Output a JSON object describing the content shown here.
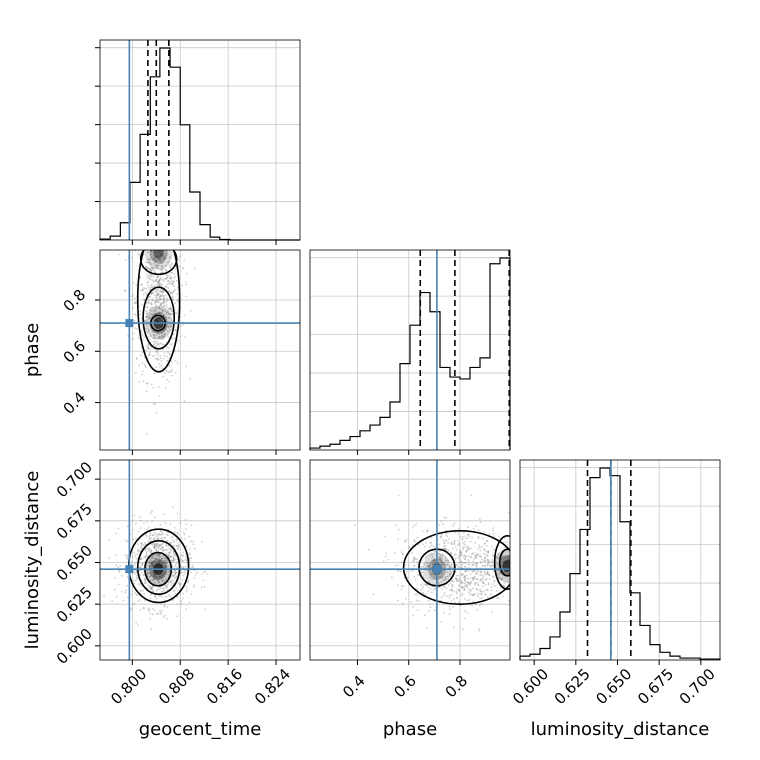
{
  "chart_data": {
    "type": "corner",
    "parameters": [
      "geocent_time",
      "phase",
      "luminosity_distance"
    ],
    "truth_color": "#4682b4",
    "truths": {
      "geocent_time": 0.7995,
      "phase": 0.71,
      "luminosity_distance": 0.646
    },
    "ranges": {
      "geocent_time": [
        0.7946,
        0.828
      ],
      "phase": [
        0.215,
        0.995
      ],
      "luminosity_distance": [
        0.5915,
        0.7115
      ]
    },
    "ticks": {
      "geocent_time": {
        "values": [
          0.8,
          0.808,
          0.816,
          0.824
        ],
        "labels": [
          "0.800",
          "0.808",
          "0.816",
          "0.824"
        ]
      },
      "phase": {
        "values": [
          0.4,
          0.6,
          0.8
        ],
        "labels": [
          "0.4",
          "0.6",
          "0.8"
        ]
      },
      "luminosity_distance": {
        "values": [
          0.6,
          0.625,
          0.65,
          0.675,
          0.7
        ],
        "labels": [
          "0.600",
          "0.625",
          "0.650",
          "0.675",
          "0.700"
        ]
      }
    },
    "histograms": {
      "geocent_time": {
        "bin_edges": [
          0.7946,
          0.7963,
          0.798,
          0.7996,
          0.8013,
          0.803,
          0.8046,
          0.8063,
          0.808,
          0.8096,
          0.8113,
          0.813,
          0.8146,
          0.8163,
          0.818,
          0.8196,
          0.8213,
          0.823,
          0.8246,
          0.8263,
          0.828
        ],
        "counts": [
          0.5,
          2,
          9,
          30,
          55,
          85,
          100,
          90,
          60,
          25,
          8,
          1.5,
          0.3,
          0,
          0,
          0,
          0,
          0,
          0,
          0
        ],
        "quantiles": [
          0.8026,
          0.804,
          0.8061
        ]
      },
      "phase": {
        "bin_edges": [
          0.215,
          0.254,
          0.293,
          0.332,
          0.371,
          0.41,
          0.449,
          0.488,
          0.527,
          0.566,
          0.605,
          0.644,
          0.683,
          0.722,
          0.761,
          0.8,
          0.839,
          0.878,
          0.917,
          0.956,
          0.995
        ],
        "counts": [
          1,
          2,
          3,
          5,
          7,
          10,
          13,
          17,
          25,
          45,
          65,
          82,
          72,
          43,
          38,
          37,
          43,
          48,
          97,
          100
        ],
        "quantiles": [
          0.645,
          0.78,
          0.992
        ]
      },
      "luminosity_distance": {
        "bin_edges": [
          0.5915,
          0.5975,
          0.6035,
          0.6095,
          0.6155,
          0.6215,
          0.6275,
          0.6335,
          0.6395,
          0.6455,
          0.6515,
          0.6575,
          0.6635,
          0.6695,
          0.6755,
          0.6815,
          0.6875,
          0.6935,
          0.6995,
          0.7055,
          0.7115
        ],
        "counts": [
          2,
          3,
          6,
          12,
          25,
          45,
          68,
          95,
          100,
          96,
          72,
          35,
          18,
          8,
          4,
          2,
          1,
          1,
          0.5,
          0.5
        ],
        "quantiles": [
          0.632,
          0.646,
          0.658
        ]
      }
    },
    "joint": [
      {
        "x": "geocent_time",
        "y": "phase",
        "peaks": [
          [
            0.8044,
            0.985,
            0.7
          ],
          [
            0.8044,
            0.71,
            0.9
          ]
        ],
        "contours": [
          [
            0.8044,
            0.8,
            0.0035,
            0.28
          ],
          [
            0.8044,
            0.73,
            0.0026,
            0.12
          ],
          [
            0.8044,
            0.96,
            0.003,
            0.06
          ],
          [
            0.8043,
            0.71,
            0.0012,
            0.03
          ]
        ]
      },
      {
        "x": "geocent_time",
        "y": "luminosity_distance",
        "peaks": [
          [
            0.8043,
            0.646,
            1.0
          ]
        ],
        "contours": [
          [
            0.8044,
            0.648,
            0.005,
            0.022
          ],
          [
            0.8044,
            0.647,
            0.0035,
            0.016
          ],
          [
            0.8043,
            0.646,
            0.0022,
            0.01
          ]
        ]
      },
      {
        "x": "phase",
        "y": "luminosity_distance",
        "peaks": [
          [
            0.985,
            0.648,
            1.0
          ],
          [
            0.71,
            0.646,
            0.7
          ]
        ],
        "contours": [
          [
            0.8,
            0.647,
            0.22,
            0.022
          ],
          [
            0.71,
            0.647,
            0.07,
            0.011
          ],
          [
            0.985,
            0.65,
            0.05,
            0.016
          ],
          [
            0.985,
            0.65,
            0.03,
            0.008
          ]
        ]
      }
    ]
  }
}
